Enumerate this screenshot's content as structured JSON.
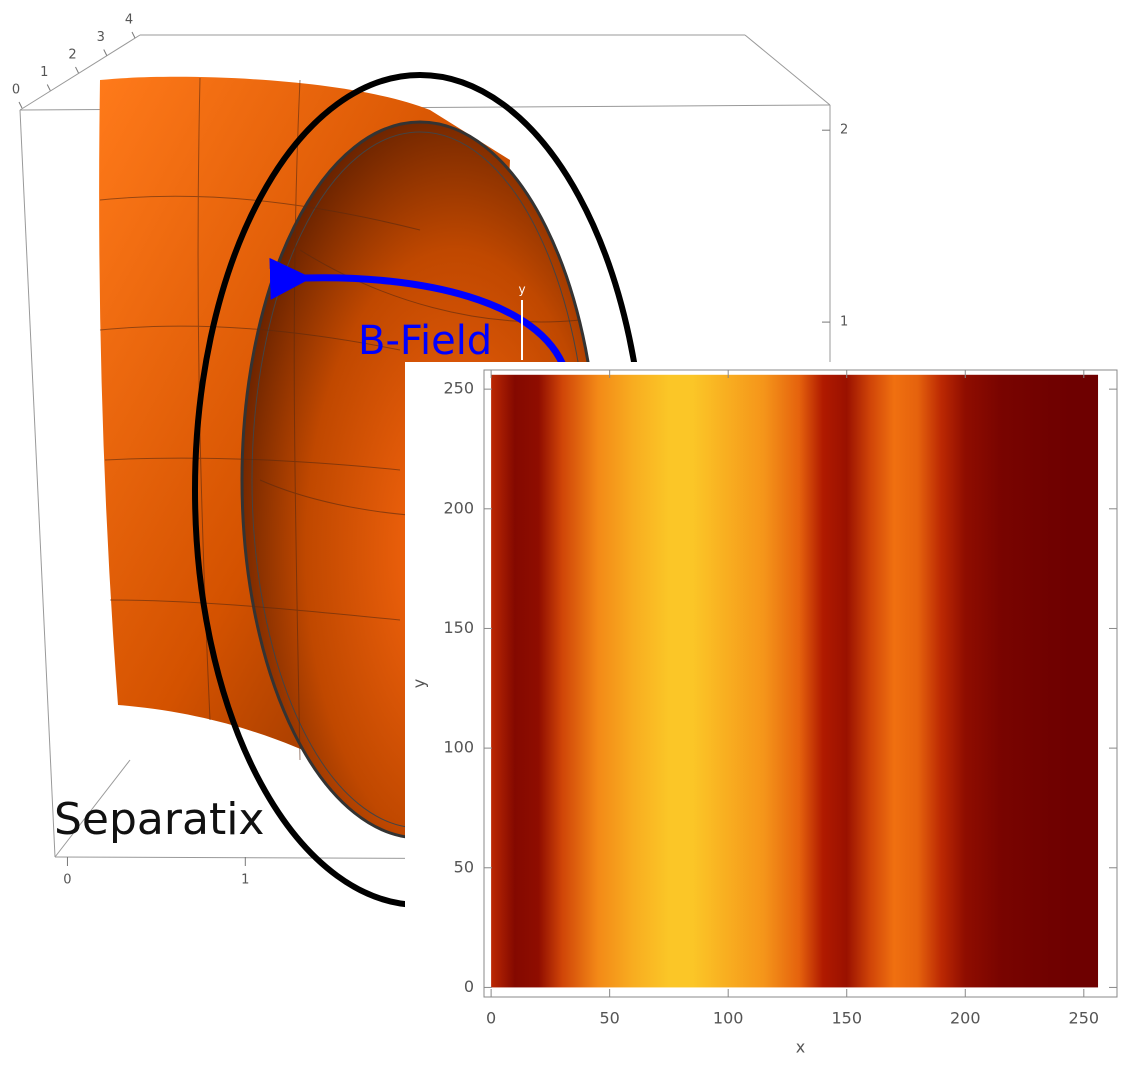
{
  "chart_data": [
    {
      "type": "surface3d",
      "annotations": [
        "B-Field",
        "Separatix",
        "y"
      ],
      "xlim": [
        -0.07,
        4.4
      ],
      "xticks": [
        0,
        1
      ],
      "ylim": [
        0,
        4
      ],
      "yticks": [
        0,
        1,
        2,
        3,
        4
      ],
      "zlim": [
        0,
        2.1
      ],
      "zticks": [
        1,
        2
      ],
      "color": "#ff6a00",
      "arrow_color": "#0000ff"
    },
    {
      "type": "density",
      "xlabel": "x",
      "ylabel": "y",
      "xlim": [
        -3,
        264
      ],
      "ylim": [
        -4,
        258
      ],
      "xticks": [
        0,
        50,
        100,
        150,
        200,
        250
      ],
      "yticks": [
        0,
        50,
        100,
        150,
        200,
        250
      ],
      "x": [
        0,
        10,
        20,
        30,
        45,
        60,
        75,
        85,
        100,
        115,
        130,
        140,
        150,
        160,
        170,
        180,
        190,
        200,
        215,
        230,
        245,
        256
      ],
      "values": [
        0.35,
        0.1,
        0.15,
        0.45,
        0.7,
        0.85,
        0.95,
        0.95,
        0.85,
        0.75,
        0.55,
        0.3,
        0.2,
        0.45,
        0.6,
        0.55,
        0.35,
        0.15,
        0.05,
        0.02,
        0,
        0
      ],
      "ymax": 256
    }
  ]
}
